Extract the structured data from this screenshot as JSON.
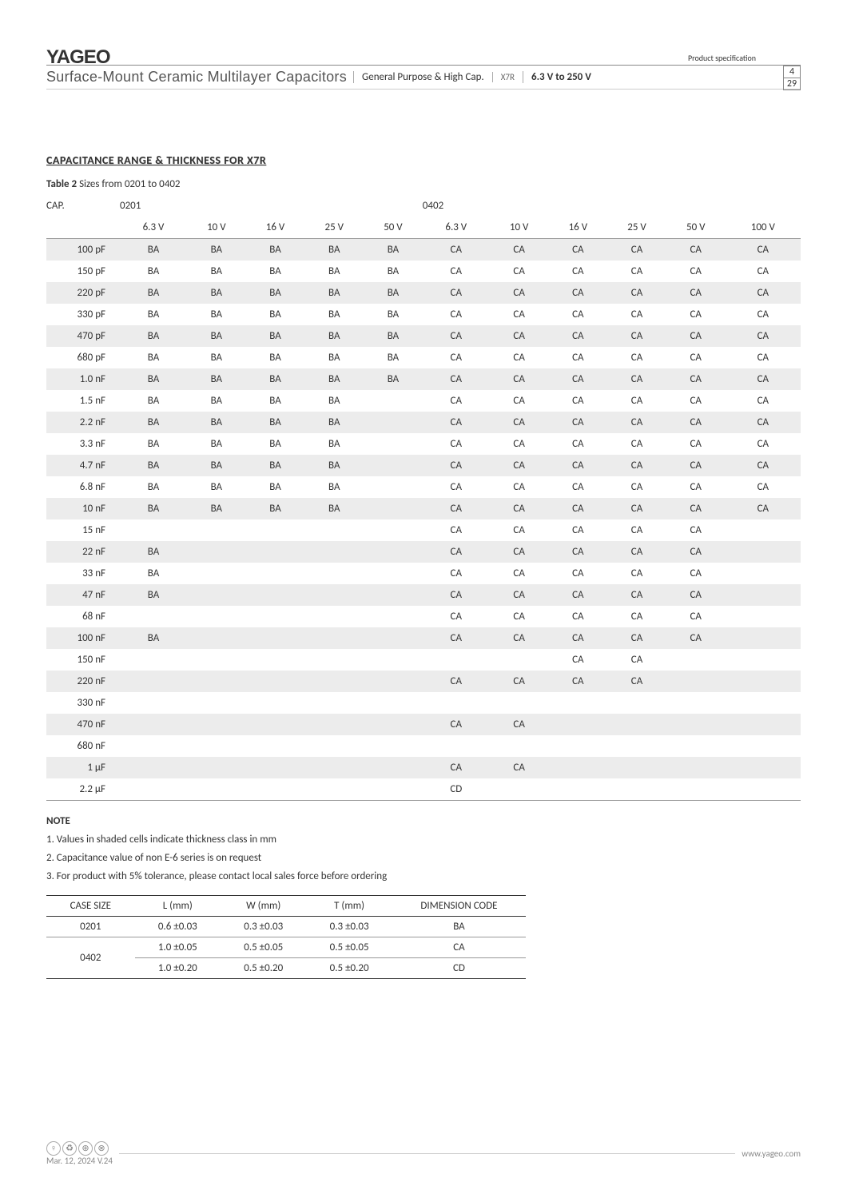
{
  "logo": "YAGEO",
  "prodspec_label": "Product specification",
  "page_top": "4",
  "page_bottom": "29",
  "subhead": {
    "left": "Surface-Mount Ceramic Multilayer Capacitors",
    "seg1": "General Purpose & High Cap.",
    "seg2": "X7R",
    "seg3": "6.3 V to 250 V"
  },
  "section_title": "CAPACITANCE RANGE & THICKNESS FOR X7R",
  "table_caption_bold": "Table 2",
  "table_caption_rest": "Sizes from 0201 to 0402",
  "cap_header_label": "CAP.",
  "size1": "0201",
  "size2": "0402",
  "voltages1": [
    "6.3 V",
    "10 V",
    "16 V",
    "25 V",
    "50 V"
  ],
  "voltages2": [
    "6.3 V",
    "10 V",
    "16 V",
    "25 V",
    "50 V",
    "100 V"
  ],
  "rows": [
    {
      "cap": "100 pF",
      "v": [
        "BA",
        "BA",
        "BA",
        "BA",
        "BA",
        "CA",
        "CA",
        "CA",
        "CA",
        "CA",
        "CA"
      ]
    },
    {
      "cap": "150 pF",
      "v": [
        "BA",
        "BA",
        "BA",
        "BA",
        "BA",
        "CA",
        "CA",
        "CA",
        "CA",
        "CA",
        "CA"
      ]
    },
    {
      "cap": "220 pF",
      "v": [
        "BA",
        "BA",
        "BA",
        "BA",
        "BA",
        "CA",
        "CA",
        "CA",
        "CA",
        "CA",
        "CA"
      ]
    },
    {
      "cap": "330 pF",
      "v": [
        "BA",
        "BA",
        "BA",
        "BA",
        "BA",
        "CA",
        "CA",
        "CA",
        "CA",
        "CA",
        "CA"
      ]
    },
    {
      "cap": "470 pF",
      "v": [
        "BA",
        "BA",
        "BA",
        "BA",
        "BA",
        "CA",
        "CA",
        "CA",
        "CA",
        "CA",
        "CA"
      ]
    },
    {
      "cap": "680 pF",
      "v": [
        "BA",
        "BA",
        "BA",
        "BA",
        "BA",
        "CA",
        "CA",
        "CA",
        "CA",
        "CA",
        "CA"
      ]
    },
    {
      "cap": "1.0 nF",
      "v": [
        "BA",
        "BA",
        "BA",
        "BA",
        "BA",
        "CA",
        "CA",
        "CA",
        "CA",
        "CA",
        "CA"
      ]
    },
    {
      "cap": "1.5 nF",
      "v": [
        "BA",
        "BA",
        "BA",
        "BA",
        "",
        "CA",
        "CA",
        "CA",
        "CA",
        "CA",
        "CA"
      ]
    },
    {
      "cap": "2.2 nF",
      "v": [
        "BA",
        "BA",
        "BA",
        "BA",
        "",
        "CA",
        "CA",
        "CA",
        "CA",
        "CA",
        "CA"
      ]
    },
    {
      "cap": "3.3 nF",
      "v": [
        "BA",
        "BA",
        "BA",
        "BA",
        "",
        "CA",
        "CA",
        "CA",
        "CA",
        "CA",
        "CA"
      ]
    },
    {
      "cap": "4.7 nF",
      "v": [
        "BA",
        "BA",
        "BA",
        "BA",
        "",
        "CA",
        "CA",
        "CA",
        "CA",
        "CA",
        "CA"
      ]
    },
    {
      "cap": "6.8 nF",
      "v": [
        "BA",
        "BA",
        "BA",
        "BA",
        "",
        "CA",
        "CA",
        "CA",
        "CA",
        "CA",
        "CA"
      ]
    },
    {
      "cap": "10 nF",
      "v": [
        "BA",
        "BA",
        "BA",
        "BA",
        "",
        "CA",
        "CA",
        "CA",
        "CA",
        "CA",
        "CA"
      ]
    },
    {
      "cap": "15 nF",
      "v": [
        "",
        "",
        "",
        "",
        "",
        "CA",
        "CA",
        "CA",
        "CA",
        "CA",
        ""
      ]
    },
    {
      "cap": "22 nF",
      "v": [
        "BA",
        "",
        "",
        "",
        "",
        "CA",
        "CA",
        "CA",
        "CA",
        "CA",
        ""
      ]
    },
    {
      "cap": "33 nF",
      "v": [
        "BA",
        "",
        "",
        "",
        "",
        "CA",
        "CA",
        "CA",
        "CA",
        "CA",
        ""
      ]
    },
    {
      "cap": "47 nF",
      "v": [
        "BA",
        "",
        "",
        "",
        "",
        "CA",
        "CA",
        "CA",
        "CA",
        "CA",
        ""
      ]
    },
    {
      "cap": "68 nF",
      "v": [
        "",
        "",
        "",
        "",
        "",
        "CA",
        "CA",
        "CA",
        "CA",
        "CA",
        ""
      ]
    },
    {
      "cap": "100 nF",
      "v": [
        "BA",
        "",
        "",
        "",
        "",
        "CA",
        "CA",
        "CA",
        "CA",
        "CA",
        ""
      ]
    },
    {
      "cap": "150 nF",
      "v": [
        "",
        "",
        "",
        "",
        "",
        "",
        "",
        "CA",
        "CA",
        "",
        ""
      ]
    },
    {
      "cap": "220 nF",
      "v": [
        "",
        "",
        "",
        "",
        "",
        "CA",
        "CA",
        "CA",
        "CA",
        "",
        ""
      ]
    },
    {
      "cap": "330 nF",
      "v": [
        "",
        "",
        "",
        "",
        "",
        "",
        "",
        "",
        "",
        "",
        ""
      ]
    },
    {
      "cap": "470 nF",
      "v": [
        "",
        "",
        "",
        "",
        "",
        "CA",
        "CA",
        "",
        "",
        "",
        ""
      ]
    },
    {
      "cap": "680 nF",
      "v": [
        "",
        "",
        "",
        "",
        "",
        "",
        "",
        "",
        "",
        "",
        ""
      ]
    },
    {
      "cap": "1 µF",
      "v": [
        "",
        "",
        "",
        "",
        "",
        "CA",
        "CA",
        "",
        "",
        "",
        ""
      ]
    },
    {
      "cap": "2.2 µF",
      "v": [
        "",
        "",
        "",
        "",
        "",
        "CD",
        "",
        "",
        "",
        "",
        ""
      ]
    }
  ],
  "note_head": "NOTE",
  "notes": [
    "1. Values in shaded cells indicate thickness class in mm",
    "2. Capacitance value of non E-6 series is on request",
    "3. For product with 5% tolerance, please contact local sales force before ordering"
  ],
  "dim_headers": [
    "CASE SIZE",
    "L (mm)",
    "W (mm)",
    "T (mm)",
    "DIMENSION CODE"
  ],
  "dim_rows": [
    [
      "0201",
      "0.6 ±0.03",
      "0.3 ±0.03",
      "0.3 ±0.03",
      "BA"
    ],
    [
      "0402",
      "1.0 ±0.05",
      "0.5 ±0.05",
      "0.5 ±0.05",
      "CA"
    ],
    [
      "",
      "1.0 ±0.20",
      "0.5 ±0.20",
      "0.5 ±0.20",
      "CD"
    ]
  ],
  "footer_date": "Mar. 12, 2024  V.24",
  "footer_url": "www.yageo.com"
}
